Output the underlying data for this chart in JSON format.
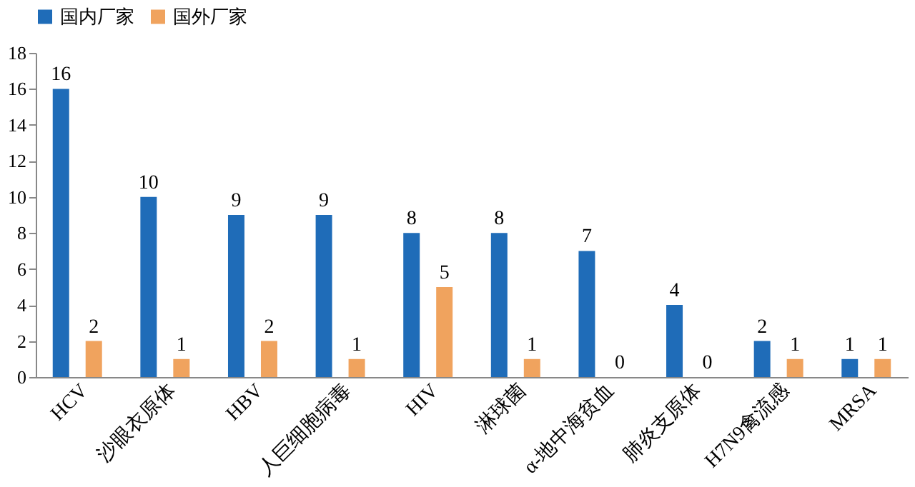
{
  "chart_data": {
    "type": "bar",
    "categories": [
      "HCV",
      "沙眼衣原体",
      "HBV",
      "人巨细胞病毒",
      "HIV",
      "淋球菌",
      "α-地中海贫血",
      "肺炎支原体",
      "H7N9禽流感",
      "MRSA"
    ],
    "series": [
      {
        "name": "国内厂家",
        "color": "#1f6cb8",
        "values": [
          16,
          10,
          9,
          9,
          8,
          8,
          7,
          4,
          2,
          1
        ]
      },
      {
        "name": "国外厂家",
        "color": "#f0a35e",
        "values": [
          2,
          1,
          2,
          1,
          5,
          1,
          0,
          0,
          1,
          1
        ]
      }
    ],
    "ylim": [
      0,
      18
    ],
    "yticks": [
      0,
      2,
      4,
      6,
      8,
      10,
      12,
      14,
      16,
      18
    ],
    "grid": false,
    "legend": "top",
    "data_labels": true
  }
}
